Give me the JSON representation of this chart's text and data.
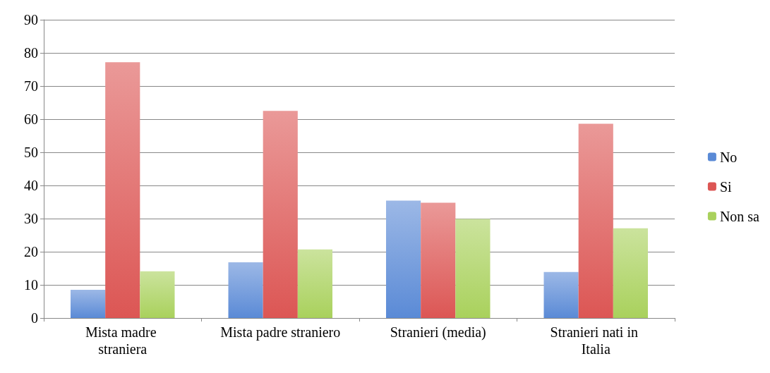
{
  "chart_data": {
    "type": "bar",
    "categories": [
      "Mista madre straniera",
      "Mista padre straniero",
      "Stranieri (media)",
      "Stranieri nati in Italia"
    ],
    "series": [
      {
        "name": "No",
        "color": "#5a8ad6",
        "values": [
          8.5,
          16.8,
          35.4,
          13.9
        ]
      },
      {
        "name": "Si",
        "color": "#dc5654",
        "values": [
          77.2,
          62.5,
          34.8,
          58.6
        ]
      },
      {
        "name": "Non sa",
        "color": "#a9d15c",
        "values": [
          14.1,
          20.7,
          29.9,
          27.1
        ]
      }
    ],
    "ylim": [
      0,
      90
    ],
    "yticks": [
      0,
      10,
      20,
      30,
      40,
      50,
      60,
      70,
      80,
      90
    ],
    "grid": "y",
    "legend": "right"
  }
}
